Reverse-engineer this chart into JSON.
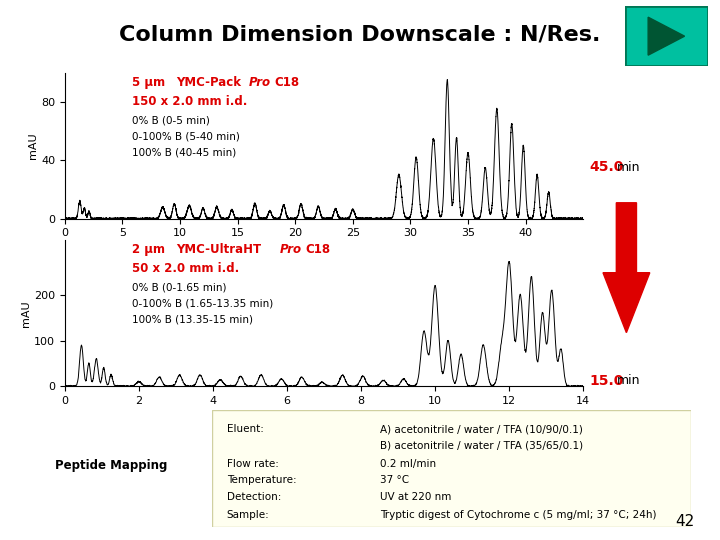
{
  "title": "Column Dimension Downscale : N/Res.",
  "title_fontsize": 16,
  "background_color": "#ffffff",
  "nav_button_color": "#00c0a0",
  "slide_number": "42",
  "top_chart": {
    "ylabel": "mAU",
    "xmin": 0,
    "xmax": 45,
    "ymin": 0,
    "ymax": 100,
    "yticks": [
      0,
      40,
      80
    ],
    "xticks": [
      0,
      5,
      10,
      15,
      20,
      25,
      30,
      35,
      40
    ],
    "time_label": "45.0",
    "time_label_color": "#cc0000",
    "time_unit": " min"
  },
  "bottom_chart": {
    "ylabel": "mAU",
    "xmin": 0.0,
    "xmax": 14.0,
    "ymin": 0,
    "ymax": 320,
    "yticks": [
      0,
      100,
      200
    ],
    "xticks": [
      0.0,
      2.0,
      4.0,
      6.0,
      8.0,
      10.0,
      12.0,
      14.0
    ],
    "time_label": "15.0",
    "time_label_color": "#cc0000",
    "time_unit": " min"
  },
  "info_box_color": "#fffff0",
  "info_box_border": "#d0d0a0",
  "info_labels": [
    "Eluent:",
    "",
    "Flow rate:",
    "Temperature:",
    "Detection:",
    "Sample:"
  ],
  "info_values": [
    "A) acetonitrile / water / TFA (10/90/0.1)",
    "B) acetonitrile / water / TFA (35/65/0.1)",
    "0.2 ml/min",
    "37 °C",
    "UV at 220 nm",
    "Tryptic digest of Cytochrome c (5 mg/ml; 37 °C; 24h)"
  ],
  "peptide_mapping_label": "Peptide Mapping",
  "arrow_color": "#dd0000",
  "red_color": "#dd0000"
}
